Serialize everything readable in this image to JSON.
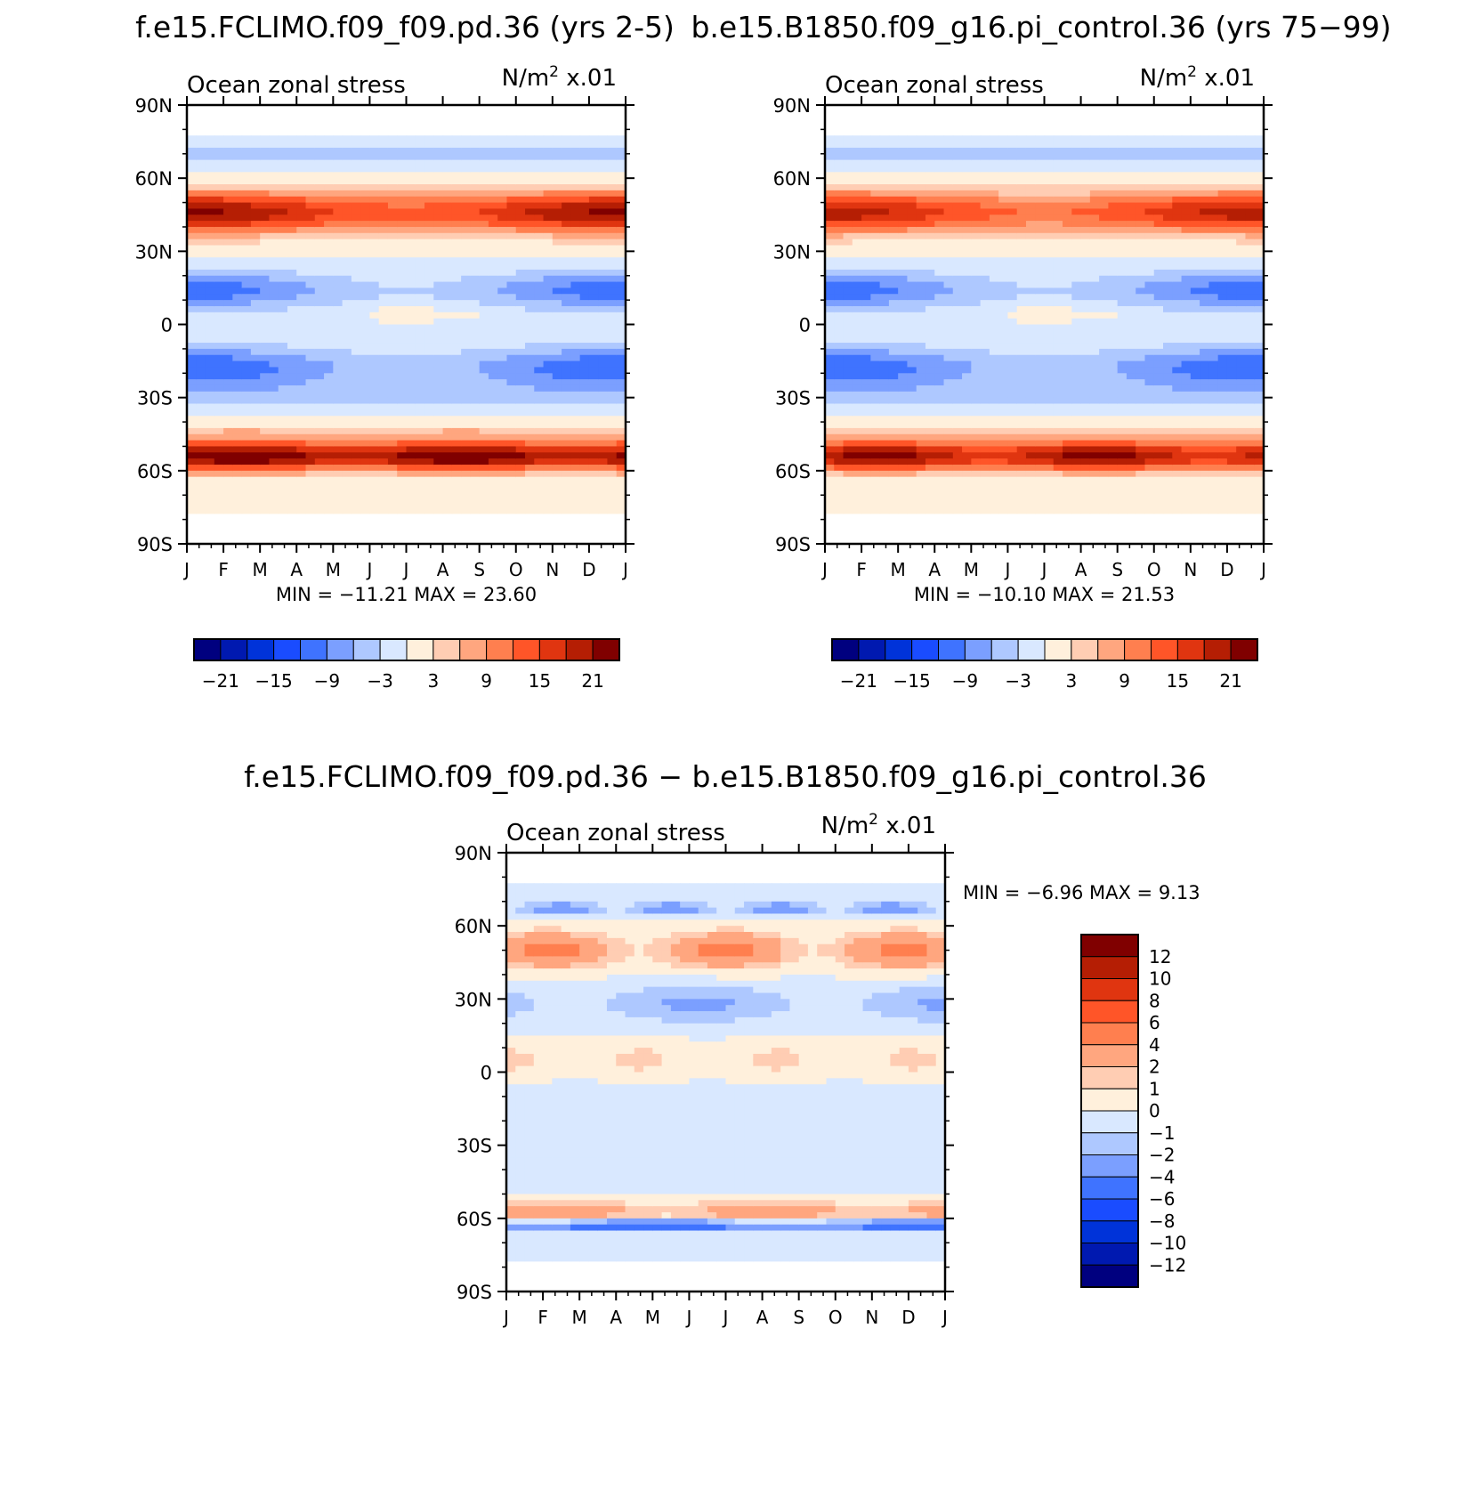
{
  "chart_data": [
    {
      "type": "heatmap",
      "title": "f.e15.FCLIMO.f09_f09.pd.36 (yrs 2-5)",
      "subtitle_left": "Ocean zonal stress",
      "subtitle_right": "N/m",
      "units_superscript": "2",
      "units_scale": "x.01",
      "x_ticks": [
        "J",
        "F",
        "M",
        "A",
        "M",
        "J",
        "J",
        "A",
        "S",
        "O",
        "N",
        "D",
        "J"
      ],
      "y_ticks": [
        "90N",
        "60N",
        "30N",
        "0",
        "30S",
        "60S",
        "90S"
      ],
      "ylim": [
        -90,
        90
      ],
      "min_max_text": "MIN = −11.21  MAX =  23.60",
      "min": -11.21,
      "max": 23.6,
      "colorbar_labels": [
        "−21",
        "−15",
        "−9",
        "−3",
        "3",
        "9",
        "15",
        "21"
      ],
      "colorbar_levels": [
        -24,
        -21,
        -18,
        -15,
        -12,
        -9,
        -6,
        -3,
        0,
        3,
        6,
        9,
        12,
        15,
        18,
        21,
        24
      ],
      "zonal_features": [
        {
          "lat": 70,
          "value": -3
        },
        {
          "lat": 45,
          "value": 12
        },
        {
          "lat": 15,
          "value": -6
        },
        {
          "lat": -20,
          "value": -6
        },
        {
          "lat": -55,
          "value": 21
        }
      ]
    },
    {
      "type": "heatmap",
      "title": "b.e15.B1850.f09_g16.pi_control.36 (yrs 75−99)",
      "subtitle_left": "Ocean zonal stress",
      "subtitle_right": "N/m",
      "units_superscript": "2",
      "units_scale": "x.01",
      "x_ticks": [
        "J",
        "F",
        "M",
        "A",
        "M",
        "J",
        "J",
        "A",
        "S",
        "O",
        "N",
        "D",
        "J"
      ],
      "y_ticks": [
        "90N",
        "60N",
        "30N",
        "0",
        "30S",
        "60S",
        "90S"
      ],
      "ylim": [
        -90,
        90
      ],
      "min_max_text": "MIN = −10.10  MAX =  21.53",
      "min": -10.1,
      "max": 21.53,
      "colorbar_labels": [
        "−21",
        "−15",
        "−9",
        "−3",
        "3",
        "9",
        "15",
        "21"
      ],
      "colorbar_levels": [
        -24,
        -21,
        -18,
        -15,
        -12,
        -9,
        -6,
        -3,
        0,
        3,
        6,
        9,
        12,
        15,
        18,
        21,
        24
      ],
      "zonal_features": [
        {
          "lat": 70,
          "value": -3
        },
        {
          "lat": 45,
          "value": 10
        },
        {
          "lat": 15,
          "value": -6
        },
        {
          "lat": -20,
          "value": -6
        },
        {
          "lat": -55,
          "value": 20
        }
      ]
    },
    {
      "type": "heatmap",
      "title": "f.e15.FCLIMO.f09_f09.pd.36 − b.e15.B1850.f09_g16.pi_control.36",
      "subtitle_left": "Ocean zonal stress",
      "subtitle_right": "N/m",
      "units_superscript": "2",
      "units_scale": "x.01",
      "x_ticks": [
        "J",
        "F",
        "M",
        "A",
        "M",
        "J",
        "J",
        "A",
        "S",
        "O",
        "N",
        "D",
        "J"
      ],
      "y_ticks": [
        "90N",
        "60N",
        "30N",
        "0",
        "30S",
        "60S",
        "90S"
      ],
      "ylim": [
        -90,
        90
      ],
      "min_max_text": "MIN =   −6.96  MAX =    9.13",
      "min": -6.96,
      "max": 9.13,
      "colorbar_labels": [
        "12",
        "10",
        "8",
        "6",
        "4",
        "2",
        "1",
        "0",
        "−1",
        "−2",
        "−4",
        "−6",
        "−8",
        "−10",
        "−12"
      ],
      "colorbar_levels": [
        -14,
        -12,
        -10,
        -8,
        -6,
        -4,
        -2,
        -1,
        0,
        1,
        2,
        4,
        6,
        8,
        10,
        12,
        14
      ],
      "zonal_features": [
        {
          "lat": 50,
          "value": 3
        },
        {
          "lat": 30,
          "value": -2
        },
        {
          "lat": 5,
          "value": 0.5
        },
        {
          "lat": -30,
          "value": -1
        },
        {
          "lat": -58,
          "value": 3
        },
        {
          "lat": -62,
          "value": -6
        }
      ]
    }
  ],
  "colors": {
    "blue_ramp": [
      "#00007f",
      "#0019b0",
      "#0033d9",
      "#1a4cff",
      "#3f73ff",
      "#7b9fff",
      "#aec8ff",
      "#d9e8ff"
    ],
    "red_ramp": [
      "#fff0dc",
      "#ffcdb3",
      "#ffa67f",
      "#ff7f4f",
      "#ff5528",
      "#e03510",
      "#b51e04",
      "#800000"
    ]
  }
}
